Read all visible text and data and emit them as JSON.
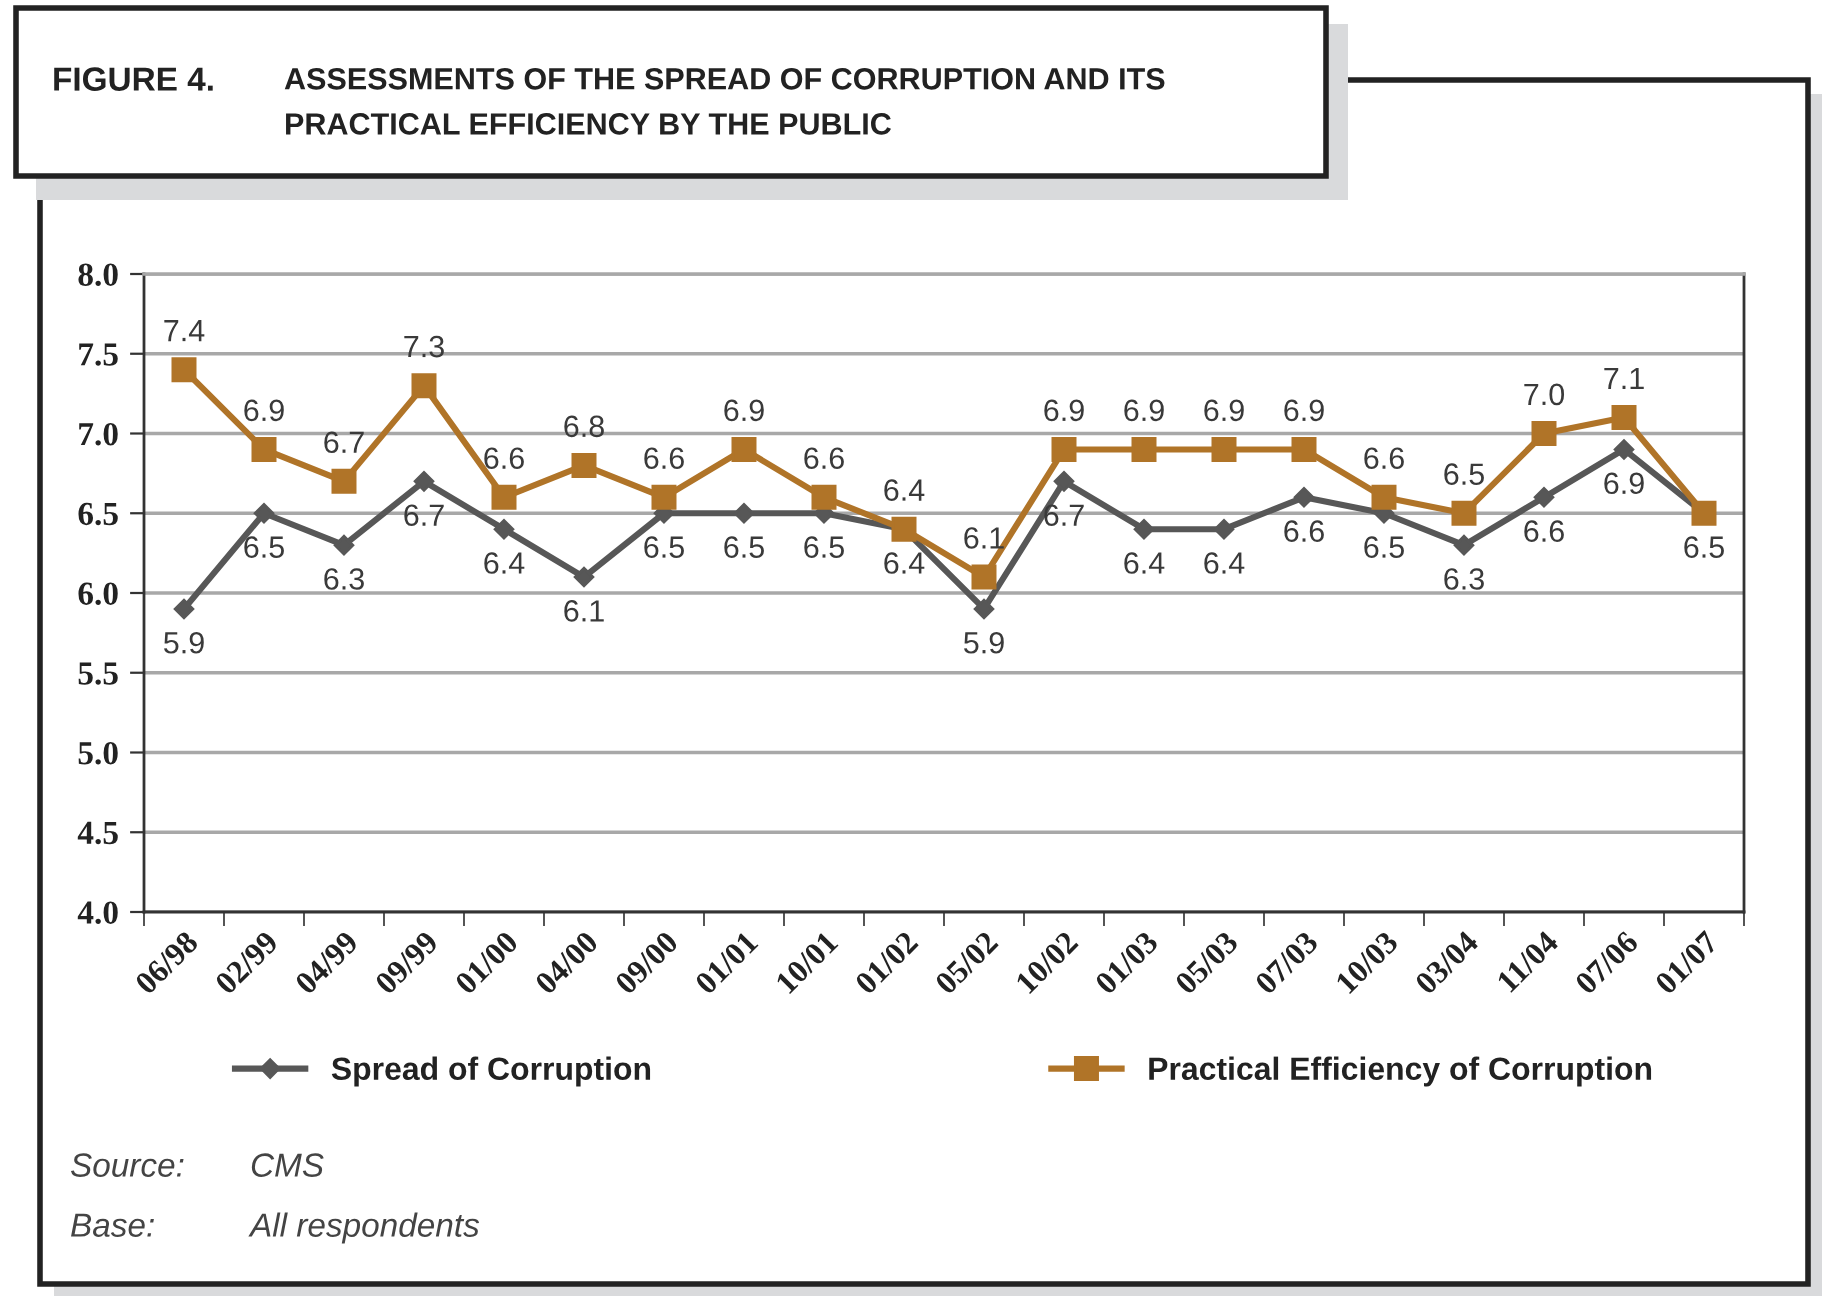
{
  "chart_data": {
    "type": "line",
    "title": "FIGURE 4.",
    "subtitle": "ASSESSMENTS OF THE SPREAD OF CORRUPTION AND ITS\nPRACTICAL EFFICIENCY BY THE PUBLIC",
    "categories": [
      "06/98",
      "02/99",
      "04/99",
      "09/99",
      "01/00",
      "04/00",
      "09/00",
      "01/01",
      "10/01",
      "01/02",
      "05/02",
      "10/02",
      "01/03",
      "05/03",
      "07/03",
      "10/03",
      "03/04",
      "11/04",
      "07/06",
      "01/07"
    ],
    "series": [
      {
        "name": "Spread of Corruption",
        "color": "#575757",
        "marker": "diamond",
        "values": [
          5.9,
          6.5,
          6.3,
          6.7,
          6.4,
          6.1,
          6.5,
          6.5,
          6.5,
          6.4,
          5.9,
          6.7,
          6.4,
          6.4,
          6.6,
          6.5,
          6.3,
          6.6,
          6.9,
          6.5
        ],
        "value_labels": [
          "5.9",
          "6.5",
          "6.3",
          "6.7",
          "6.4",
          "6.1",
          "6.5",
          "6.5",
          "6.5",
          "6.4",
          "5.9",
          "6.7",
          "6.4",
          "6.4",
          "6.6",
          "6.5",
          "6.3",
          "6.6",
          "6.9",
          "6.5"
        ]
      },
      {
        "name": "Practical Efficiency of Corruption",
        "color": "#b07428",
        "marker": "square",
        "values": [
          7.4,
          6.9,
          6.7,
          7.3,
          6.6,
          6.8,
          6.6,
          6.9,
          6.6,
          6.4,
          6.1,
          6.9,
          6.9,
          6.9,
          6.9,
          6.6,
          6.5,
          7.0,
          7.1,
          6.5
        ],
        "value_labels": [
          "7.4",
          "6.9",
          "6.7",
          "7.3",
          "6.6",
          "6.8",
          "6.6",
          "6.9",
          "6.6",
          "6.4",
          "6.1",
          "6.9",
          "6.9",
          "6.9",
          "6.9",
          "6.6",
          "6.5",
          "7.0",
          "7.1",
          null
        ]
      }
    ],
    "ylim": [
      4,
      8
    ],
    "yticks": [
      {
        "value": 4,
        "label": "4.0"
      },
      {
        "value": 4.5,
        "label": "4.5"
      },
      {
        "value": 5,
        "label": "5.0"
      },
      {
        "value": 5.5,
        "label": "5.5"
      },
      {
        "value": 6,
        "label": "6.0"
      },
      {
        "value": 6.5,
        "label": "6.5"
      },
      {
        "value": 7,
        "label": "7.0"
      },
      {
        "value": 7.5,
        "label": "7.5"
      },
      {
        "value": 8,
        "label": "8.0"
      }
    ],
    "grid": "y",
    "legend": "bottom",
    "annotations": [
      "Source:",
      "CMS",
      "Base:",
      "All respondents"
    ]
  }
}
